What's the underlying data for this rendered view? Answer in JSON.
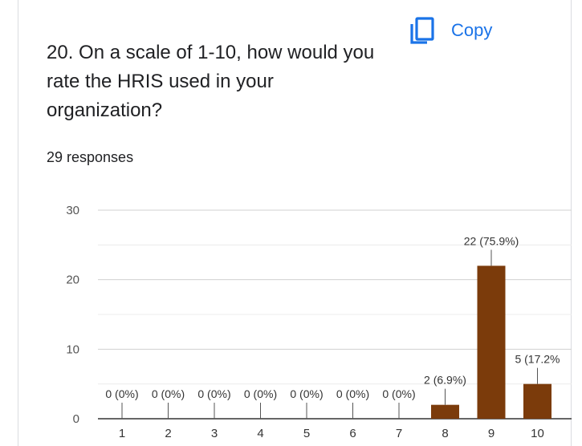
{
  "header": {
    "copy_label": "Copy"
  },
  "question": {
    "title": "20. On a scale of 1-10, how would you rate the HRIS used in your organization?"
  },
  "summary": {
    "responses": "29 responses"
  },
  "colors": {
    "bar": "#7b3b0b",
    "accent": "#1a73e8"
  },
  "chart_data": {
    "type": "bar",
    "categories": [
      "1",
      "2",
      "3",
      "4",
      "5",
      "6",
      "7",
      "8",
      "9",
      "10"
    ],
    "values": [
      0,
      0,
      0,
      0,
      0,
      0,
      0,
      2,
      22,
      5
    ],
    "data_labels": [
      "0 (0%)",
      "0 (0%)",
      "0 (0%)",
      "0 (0%)",
      "0 (0%)",
      "0 (0%)",
      "0 (0%)",
      "2 (6.9%)",
      "22 (75.9%)",
      "5 (17.2%"
    ],
    "yticks": [
      "0",
      "10",
      "20",
      "30"
    ],
    "ylim": [
      0,
      30
    ],
    "grid": true,
    "legend": "none"
  }
}
